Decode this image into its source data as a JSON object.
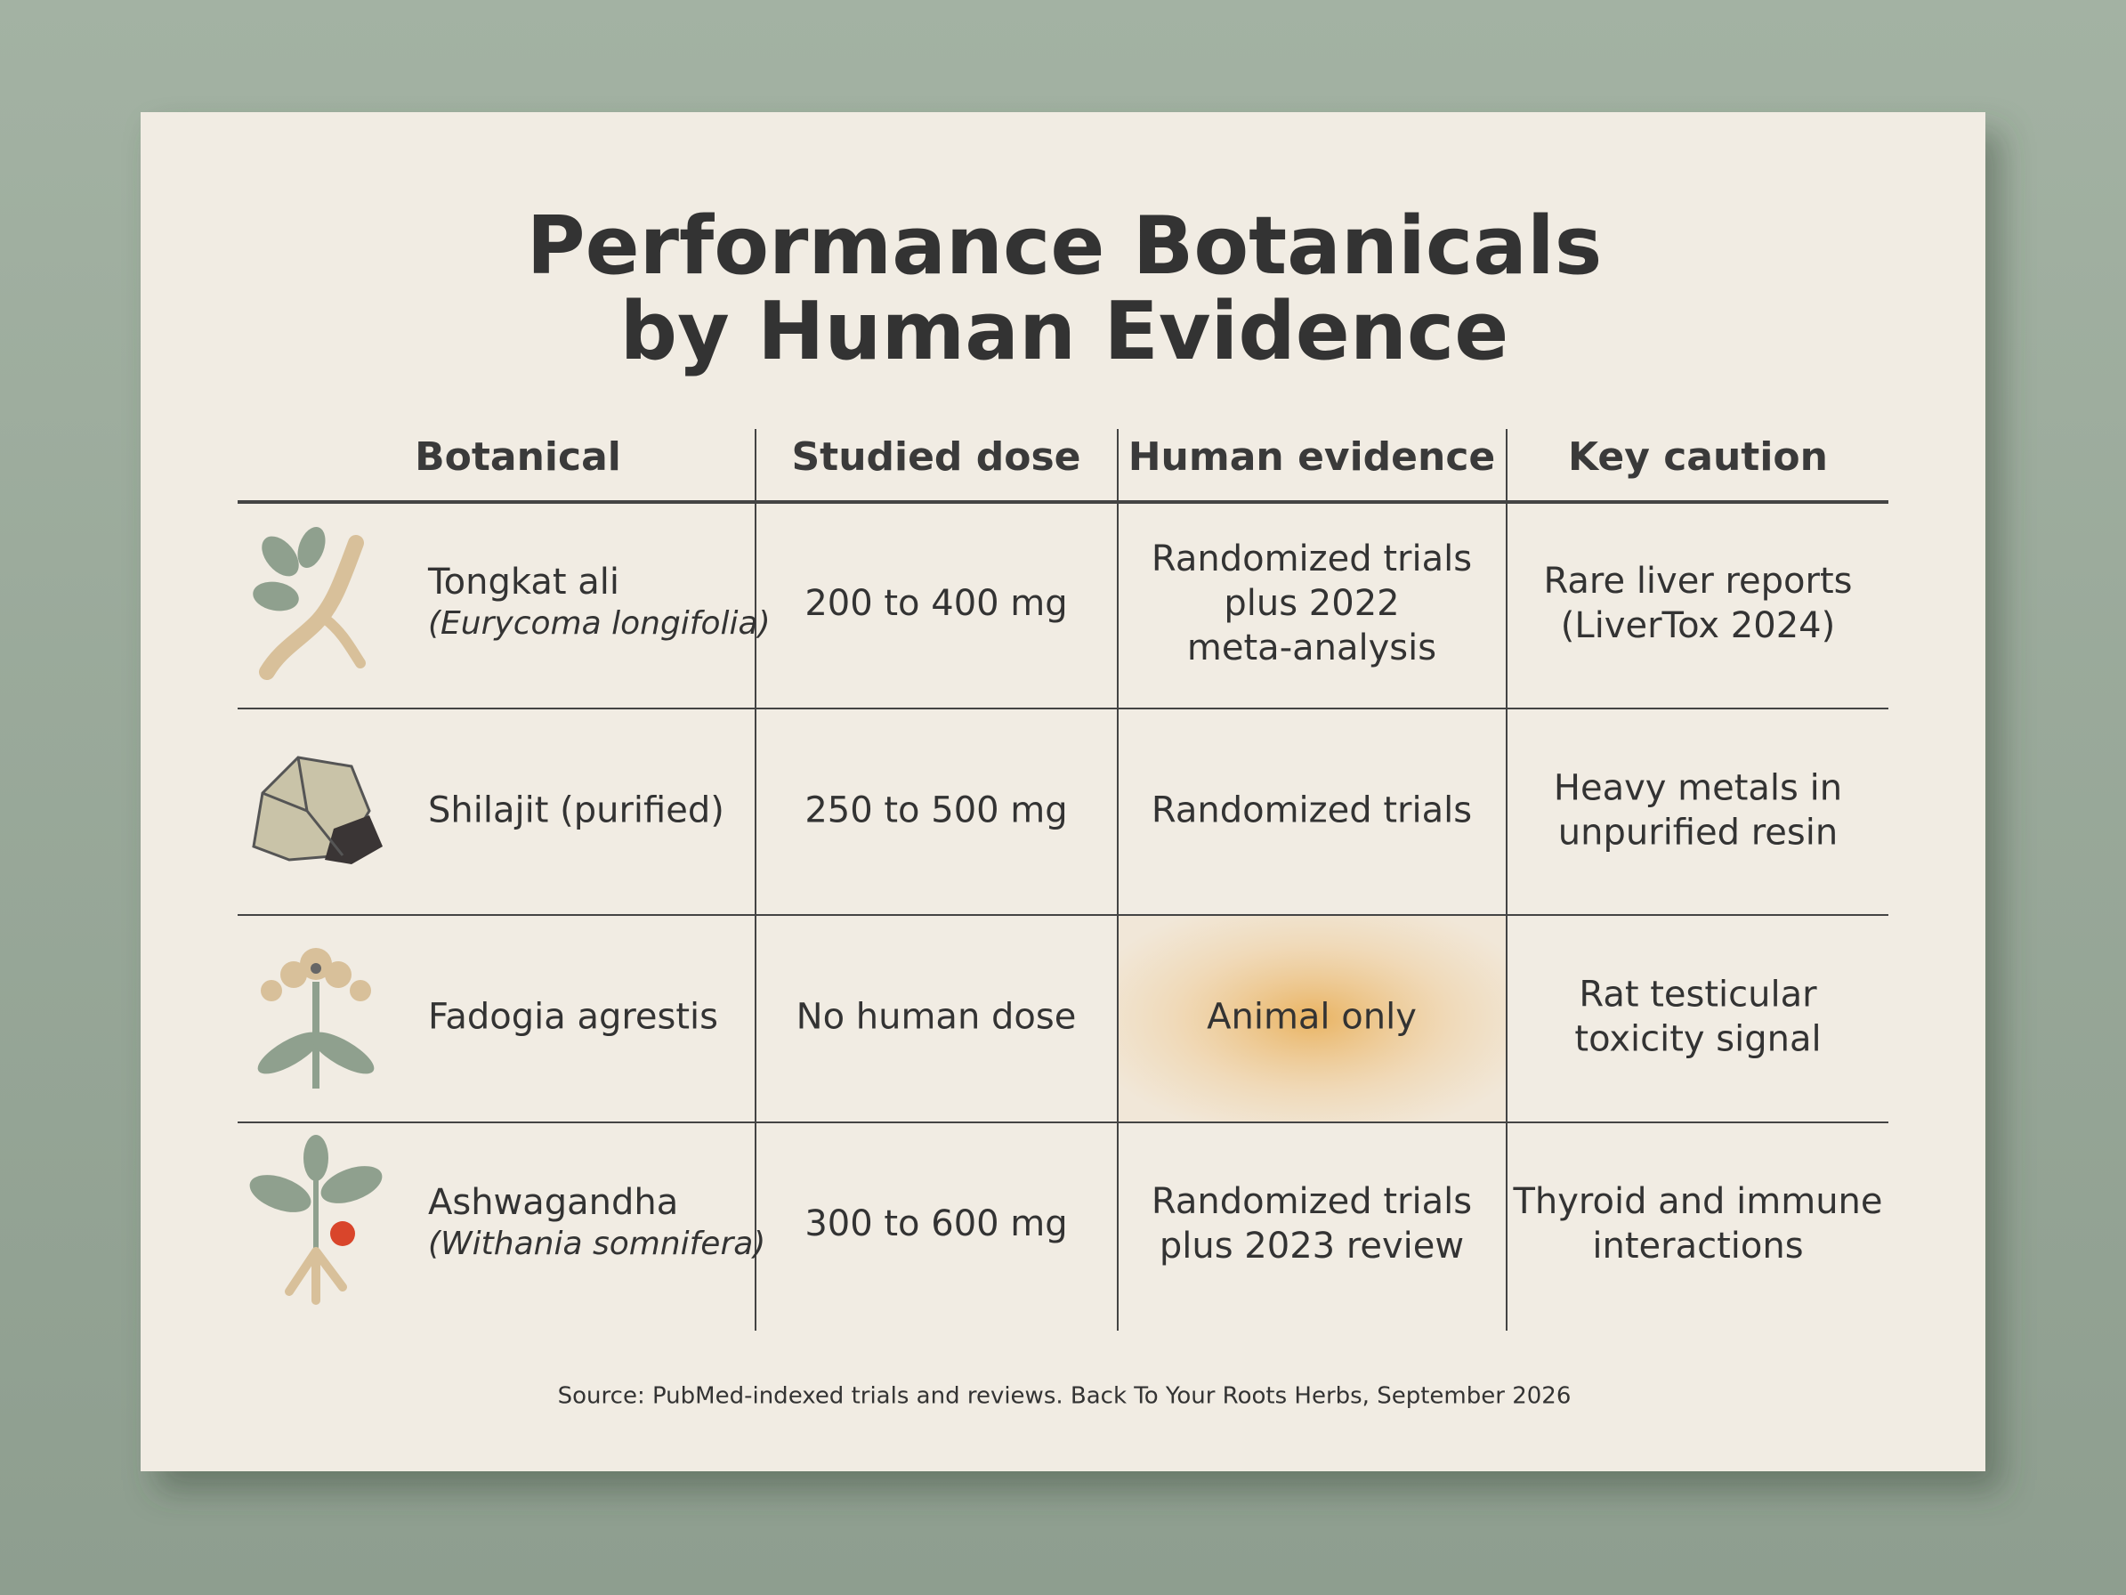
{
  "title": [
    "Performance Botanicals",
    "by Human Evidence"
  ],
  "table": {
    "columns": [
      "Botanical",
      "Studied dose",
      "Human evidence",
      "Key caution"
    ],
    "rows": [
      {
        "botanical": "Tongkat ali",
        "latin": "(Eurycoma longifolia)",
        "dose": "200 to 400 mg",
        "evidence": [
          "Randomized trials",
          "plus 2022",
          "meta-analysis"
        ],
        "caution": [
          "Rare liver reports",
          "(LiverTox 2024)"
        ]
      },
      {
        "botanical": "Shilajit (purified)",
        "dose": "250 to 500 mg",
        "evidence": [
          "Randomized trials"
        ],
        "caution": [
          "Heavy metals in",
          "unpurified resin"
        ]
      },
      {
        "botanical": "Fadogia agrestis",
        "dose": "No human dose",
        "evidence": [
          "Animal only"
        ],
        "caution": [
          "Rat testicular",
          "toxicity signal"
        ]
      },
      {
        "botanical": "Ashwagandha",
        "latin": "(Withania somnifera)",
        "dose": "300 to 600 mg",
        "evidence": [
          "Randomized trials",
          "plus 2023 review"
        ],
        "caution": [
          "Thyroid and immune",
          "interactions"
        ]
      }
    ]
  },
  "source": "Source: PubMed-indexed trials and reviews. Back To Your Roots Herbs, September 2026"
}
